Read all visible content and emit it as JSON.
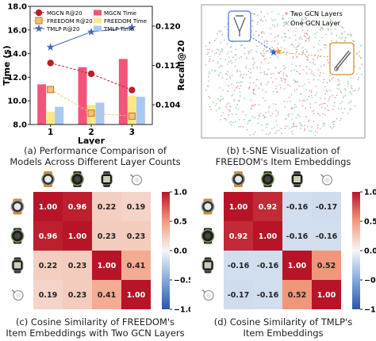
{
  "chart_data": [
    {
      "id": "a",
      "type": "bar",
      "caption": [
        "(a) Performance Comparison of",
        "Models Across Different Layer Counts"
      ],
      "xlabel": "Layer",
      "ylabel_left": "Time (s)",
      "ylabel_right": "Recall@20",
      "categories": [
        "1",
        "2",
        "3"
      ],
      "ylim_left": [
        8.0,
        18.0
      ],
      "yticks_left": [
        "8.0",
        "10.0",
        "12.0",
        "14.0",
        "16.0",
        "18.0"
      ],
      "ylim_right": [
        0.1,
        0.124
      ],
      "yticks_right": [
        "0.104",
        "0.112",
        "0.120"
      ],
      "bar_series": [
        {
          "name": "MGCN Time",
          "color": "#f4547a",
          "values": [
            11.4,
            12.85,
            13.55
          ]
        },
        {
          "name": "FREEDOM Time",
          "color": "#fde887",
          "values": [
            9.1,
            9.65,
            10.45
          ]
        },
        {
          "name": "TMLP Time",
          "color": "#a9c8f2",
          "values": [
            9.5,
            9.85,
            10.35
          ]
        }
      ],
      "line_series": [
        {
          "name": "MGCN R@20",
          "color": "#b8202b",
          "marker": "circle",
          "values": [
            0.1125,
            0.1103,
            0.107
          ]
        },
        {
          "name": "FREEDOM R@20",
          "color": "#f0c27a",
          "marker": "square",
          "values": [
            0.1071,
            0.1023,
            0.1017
          ]
        },
        {
          "name": "TMLP R@20",
          "color": "#4969b8",
          "marker": "star",
          "values": [
            0.1157,
            0.1188,
            0.1197
          ]
        }
      ]
    },
    {
      "id": "b",
      "type": "scatter",
      "caption": [
        "(b) t-SNE Visualization of",
        "FREEDOM's Item Embeddings"
      ],
      "series": [
        {
          "name": "Two GCN Layers",
          "color": "#f0a1a9"
        },
        {
          "name": "One GCN Layer",
          "color": "#9fd4b5"
        }
      ]
    },
    {
      "id": "c",
      "type": "heatmap",
      "caption": [
        "(c) Cosine Similarity of FREEDOM's",
        "Item Embeddings with Two GCN Layers"
      ],
      "matrix": [
        [
          1.0,
          0.96,
          0.22,
          0.19
        ],
        [
          0.96,
          1.0,
          0.23,
          0.23
        ],
        [
          0.22,
          0.23,
          1.0,
          0.41
        ],
        [
          0.19,
          0.23,
          0.41,
          1.0
        ]
      ],
      "colorbar_range": [
        -1.0,
        1.0
      ],
      "colorbar_ticks": [
        "1.0",
        "0.5",
        "0.0",
        "−0.5",
        "−1.0"
      ],
      "item_icons": [
        "orange-watch-icon",
        "dark-watch-icon",
        "digital-watch-icon",
        "stopwatch-icon"
      ]
    },
    {
      "id": "d",
      "type": "heatmap",
      "caption": [
        "(d) Cosine Similarity of TMLP's",
        "Item Embeddings"
      ],
      "matrix": [
        [
          1.0,
          0.92,
          -0.16,
          -0.17
        ],
        [
          0.92,
          1.0,
          -0.16,
          -0.16
        ],
        [
          -0.16,
          -0.16,
          1.0,
          0.52
        ],
        [
          -0.17,
          -0.16,
          0.52,
          1.0
        ]
      ],
      "colorbar_range": [
        -1.0,
        1.0
      ],
      "colorbar_ticks": [
        "1.0",
        "0.5",
        "0.0",
        "−0.5",
        "−1.0"
      ],
      "item_icons": [
        "orange-watch-icon",
        "dark-watch-icon",
        "digital-watch-icon",
        "stopwatch-icon"
      ]
    }
  ]
}
